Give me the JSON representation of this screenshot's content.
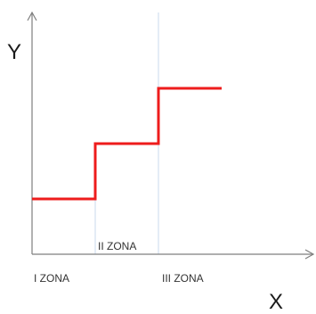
{
  "chart_data": {
    "type": "line",
    "title": "",
    "xlabel": "X",
    "ylabel": "Y",
    "zones": [
      "I ZONA",
      "II ZONA",
      "III ZONA"
    ],
    "series": [
      {
        "x": [
          0,
          1,
          1,
          2,
          2,
          3
        ],
        "y": [
          1,
          1,
          2,
          2,
          3,
          3
        ]
      }
    ],
    "zone_boundaries": [
      1,
      2
    ],
    "xlim": [
      0,
      4.5
    ],
    "ylim": [
      0,
      4.3
    ],
    "grid": false,
    "colors": {
      "series": "#ee1c1c",
      "axis": "#7f7f7f",
      "zone_line": "#c9d8ec"
    }
  }
}
